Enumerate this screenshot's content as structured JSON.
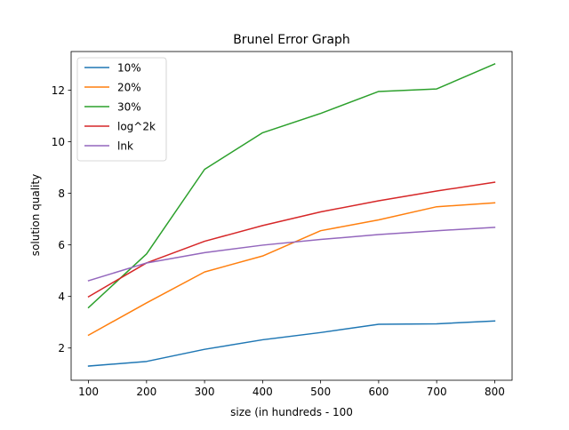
{
  "chart_data": {
    "type": "line",
    "title": "Brunel Error Graph",
    "xlabel": "size (in hundreds - 100",
    "ylabel": "solution quality",
    "x": [
      100,
      200,
      300,
      400,
      500,
      600,
      700,
      800
    ],
    "xlim": [
      70,
      830
    ],
    "ylim": [
      0.75,
      13.5
    ],
    "xticks": [
      100,
      200,
      300,
      400,
      500,
      600,
      700,
      800
    ],
    "yticks": [
      2,
      4,
      6,
      8,
      10,
      12
    ],
    "legend_position": "top-left",
    "grid": false,
    "series": [
      {
        "name": "10%",
        "color": "#1f77b4",
        "values": [
          1.3,
          1.48,
          1.95,
          2.32,
          2.6,
          2.92,
          2.94,
          3.05
        ]
      },
      {
        "name": "20%",
        "color": "#ff7f0e",
        "values": [
          2.5,
          3.75,
          4.95,
          5.57,
          6.55,
          6.97,
          7.48,
          7.63
        ]
      },
      {
        "name": "30%",
        "color": "#2ca02c",
        "values": [
          3.57,
          5.65,
          8.93,
          10.35,
          11.1,
          11.95,
          12.05,
          13.02
        ]
      },
      {
        "name": "log^2k",
        "color": "#d62728",
        "values": [
          3.99,
          5.3,
          6.14,
          6.75,
          7.28,
          7.71,
          8.09,
          8.43
        ]
      },
      {
        "name": "lnk",
        "color": "#9467bd",
        "values": [
          4.61,
          5.3,
          5.7,
          5.99,
          6.21,
          6.4,
          6.55,
          6.68
        ]
      }
    ]
  }
}
